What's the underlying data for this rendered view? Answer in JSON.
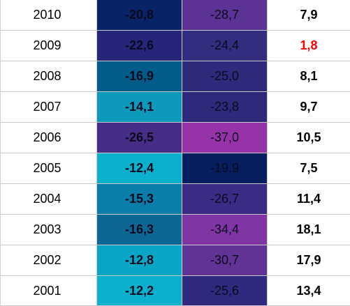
{
  "rows": [
    {
      "year": "2010",
      "a": "-20,8",
      "a_color": "#082366",
      "b": "-28,7",
      "b_color": "#5b3394",
      "diff": "7,9",
      "diff_color": "#000000"
    },
    {
      "year": "2009",
      "a": "-22,6",
      "a_color": "#25257a",
      "b": "-24,4",
      "b_color": "#332d7f",
      "diff": "1,8",
      "diff_color": "#ff0000"
    },
    {
      "year": "2008",
      "a": "-16,9",
      "a_color": "#035b89",
      "b": "-25,0",
      "b_color": "#2e2a7c",
      "diff": "8,1",
      "diff_color": "#000000"
    },
    {
      "year": "2007",
      "a": "-14,1",
      "a_color": "#0d99bc",
      "b": "-23,8",
      "b_color": "#2d2a7c",
      "diff": "9,7",
      "diff_color": "#000000"
    },
    {
      "year": "2006",
      "a": "-26,5",
      "a_color": "#462e86",
      "b": "-37,0",
      "b_color": "#9733a9",
      "diff": "10,5",
      "diff_color": "#000000"
    },
    {
      "year": "2005",
      "a": "-12,4",
      "a_color": "#0bb0cd",
      "b": "-19,9",
      "b_color": "#061e5e",
      "diff": "7,5",
      "diff_color": "#000000"
    },
    {
      "year": "2004",
      "a": "-15,3",
      "a_color": "#0a7ea9",
      "b": "-26,7",
      "b_color": "#3b2b84",
      "diff": "11,4",
      "diff_color": "#000000"
    },
    {
      "year": "2003",
      "a": "-16,3",
      "a_color": "#0c6794",
      "b": "-34,4",
      "b_color": "#7f35a3",
      "diff": "18,1",
      "diff_color": "#000000"
    },
    {
      "year": "2002",
      "a": "-12,8",
      "a_color": "#0ba6c6",
      "b": "-30,7",
      "b_color": "#603395",
      "diff": "17,9",
      "diff_color": "#000000"
    },
    {
      "year": "2001",
      "a": "-12,2",
      "a_color": "#0bb0cd",
      "b": "-25,6",
      "b_color": "#2f2a7e",
      "diff": "13,4",
      "diff_color": "#000000"
    }
  ]
}
